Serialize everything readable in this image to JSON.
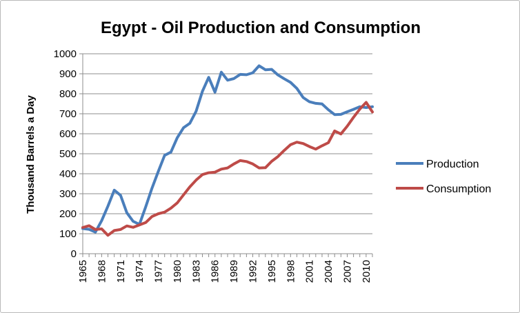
{
  "chart_data": {
    "type": "line",
    "title": "Egypt - Oil Production and Consumption",
    "xlabel": "",
    "ylabel": "Thousand Barrels a Day",
    "ylim": [
      0,
      1000
    ],
    "yticks": [
      0,
      100,
      200,
      300,
      400,
      500,
      600,
      700,
      800,
      900,
      1000
    ],
    "x_tick_labels": [
      "1965",
      "1968",
      "1971",
      "1974",
      "1977",
      "1980",
      "1983",
      "1986",
      "1989",
      "1992",
      "1995",
      "1998",
      "2001",
      "2004",
      "2007",
      "2010"
    ],
    "x": [
      1965,
      1966,
      1967,
      1968,
      1969,
      1970,
      1971,
      1972,
      1973,
      1974,
      1975,
      1976,
      1977,
      1978,
      1979,
      1980,
      1981,
      1982,
      1983,
      1984,
      1985,
      1986,
      1987,
      1988,
      1989,
      1990,
      1991,
      1992,
      1993,
      1994,
      1995,
      1996,
      1997,
      1998,
      1999,
      2000,
      2001,
      2002,
      2003,
      2004,
      2005,
      2006,
      2007,
      2008,
      2009,
      2010,
      2011
    ],
    "grid": true,
    "legend_position": "right",
    "series": [
      {
        "name": "Production",
        "color": "#4a7ebb",
        "values": [
          126,
          122,
          108,
          165,
          238,
          318,
          292,
          205,
          162,
          147,
          235,
          328,
          412,
          492,
          508,
          580,
          630,
          652,
          712,
          812,
          882,
          808,
          908,
          868,
          876,
          897,
          895,
          905,
          940,
          920,
          922,
          894,
          875,
          857,
          827,
          781,
          760,
          752,
          749,
          720,
          696,
          697,
          710,
          722,
          735,
          731,
          735
        ]
      },
      {
        "name": "Consumption",
        "color": "#be4b48",
        "values": [
          131,
          140,
          121,
          124,
          92,
          116,
          121,
          139,
          132,
          144,
          156,
          186,
          200,
          208,
          228,
          254,
          294,
          334,
          368,
          396,
          405,
          408,
          423,
          429,
          449,
          466,
          461,
          449,
          429,
          430,
          462,
          486,
          517,
          545,
          558,
          551,
          536,
          523,
          540,
          555,
          614,
          599,
          638,
          682,
          723,
          757,
          709
        ]
      }
    ]
  }
}
